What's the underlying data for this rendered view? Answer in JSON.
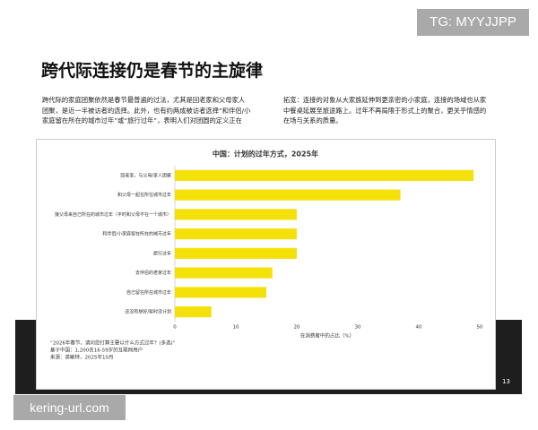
{
  "page": {
    "watermark_top": "TG: MYYJJPP",
    "heading": "跨代际连接仍是春节的主旋律",
    "column_left": [
      "跨代际的家庭团聚依然是春节最普遍的过法，尤其是回老家和父母家人",
      "团聚，是近一半被访者的选择。此外，也有约两成被访者选择“和伴侣/小",
      "家庭留在所在的城市过年”或“旅行过年”，表明人们对团圆的定义正在"
    ],
    "column_right": [
      "拓宽：连接的对象从大家族延伸到更亲密的小家庭，连接的场域也从家",
      "中餐桌延展至旅途路上。过年不再局限于形式上的聚合，更关乎情感的",
      "在场与关系的质量。"
    ],
    "page_number": "13",
    "watermark_bottom": "kering-url.com"
  },
  "chart_data": {
    "type": "hbar",
    "title": "中国：计划的过年方式，2025年",
    "categories": [
      "回老家，与父母/家人团聚",
      "和父母一起在所在城市过年",
      "接父母来自己所在的城市过年（平时和父母不在一个城市）",
      "和伴侣/小家庭留在所在的城市过年",
      "旅行过年",
      "去伴侣的老家过年",
      "自己留在所在城市过年",
      "还没有想好/暂时没计划"
    ],
    "values": [
      49,
      37,
      20,
      20,
      20,
      16,
      15,
      6
    ],
    "color": "#f5e10a",
    "x_label": "在消费者中的占比（%）",
    "xlim": [
      0,
      50
    ],
    "xticks": [
      0,
      10,
      20,
      30,
      40,
      50
    ],
    "grid": false,
    "notes": [
      "“2026年春节，请问您打算主要以什么方式过年？(多选)”",
      "基于中国：1,200名16-59岁的互联网用户",
      "来源：英敏特，2025年10月"
    ]
  }
}
